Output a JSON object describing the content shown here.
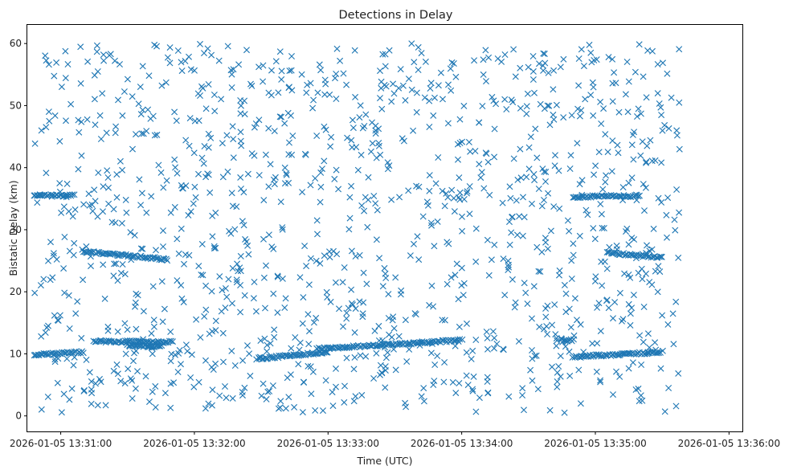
{
  "chart_data": {
    "type": "scatter",
    "title": "Detections in Delay",
    "xlabel": "Time (UTC)",
    "ylabel": "Bistatic Delay (km)",
    "marker": "x",
    "color": "#1f77b4",
    "grid": false,
    "x_axis": {
      "type": "time",
      "start": "2026-01-05 13:31:00",
      "end": "2026-01-05 13:36:00",
      "range": [
        "2026-01-05 13:30:45",
        "2026-01-05 13:36:06"
      ],
      "tick_labels": [
        "2026-01-05 13:31:00",
        "2026-01-05 13:32:00",
        "2026-01-05 13:33:00",
        "2026-01-05 13:34:00",
        "2026-01-05 13:35:00",
        "2026-01-05 13:36:00"
      ]
    },
    "y_axis": {
      "range": [
        -2.5,
        63
      ],
      "ticks": [
        0,
        10,
        20,
        30,
        40,
        50,
        60
      ],
      "tick_labels": [
        "0",
        "10",
        "20",
        "30",
        "40",
        "50",
        "60"
      ]
    },
    "tracks": [
      {
        "from": [
          "2026-01-05 13:30:48",
          35.5
        ],
        "to": [
          "2026-01-05 13:31:06",
          35.5
        ]
      },
      {
        "from": [
          "2026-01-05 13:31:10",
          26.5
        ],
        "to": [
          "2026-01-05 13:31:48",
          25.2
        ]
      },
      {
        "from": [
          "2026-01-05 13:31:15",
          12.0
        ],
        "to": [
          "2026-01-05 13:31:50",
          11.9
        ]
      },
      {
        "from": [
          "2026-01-05 13:31:30",
          11.3
        ],
        "to": [
          "2026-01-05 13:31:45",
          11.2
        ]
      },
      {
        "from": [
          "2026-01-05 13:30:48",
          9.8
        ],
        "to": [
          "2026-01-05 13:31:10",
          10.3
        ]
      },
      {
        "from": [
          "2026-01-05 13:32:28",
          9.2
        ],
        "to": [
          "2026-01-05 13:33:00",
          10.3
        ]
      },
      {
        "from": [
          "2026-01-05 13:32:55",
          10.8
        ],
        "to": [
          "2026-01-05 13:34:00",
          12.2
        ]
      },
      {
        "from": [
          "2026-01-05 13:34:50",
          35.3
        ],
        "to": [
          "2026-01-05 13:35:20",
          35.5
        ]
      },
      {
        "from": [
          "2026-01-05 13:35:05",
          26.3
        ],
        "to": [
          "2026-01-05 13:35:30",
          25.5
        ]
      },
      {
        "from": [
          "2026-01-05 13:34:45",
          12.2
        ],
        "to": [
          "2026-01-05 13:34:50",
          12.2
        ]
      },
      {
        "from": [
          "2026-01-05 13:34:50",
          9.5
        ],
        "to": [
          "2026-01-05 13:35:30",
          10.3
        ]
      }
    ]
  }
}
